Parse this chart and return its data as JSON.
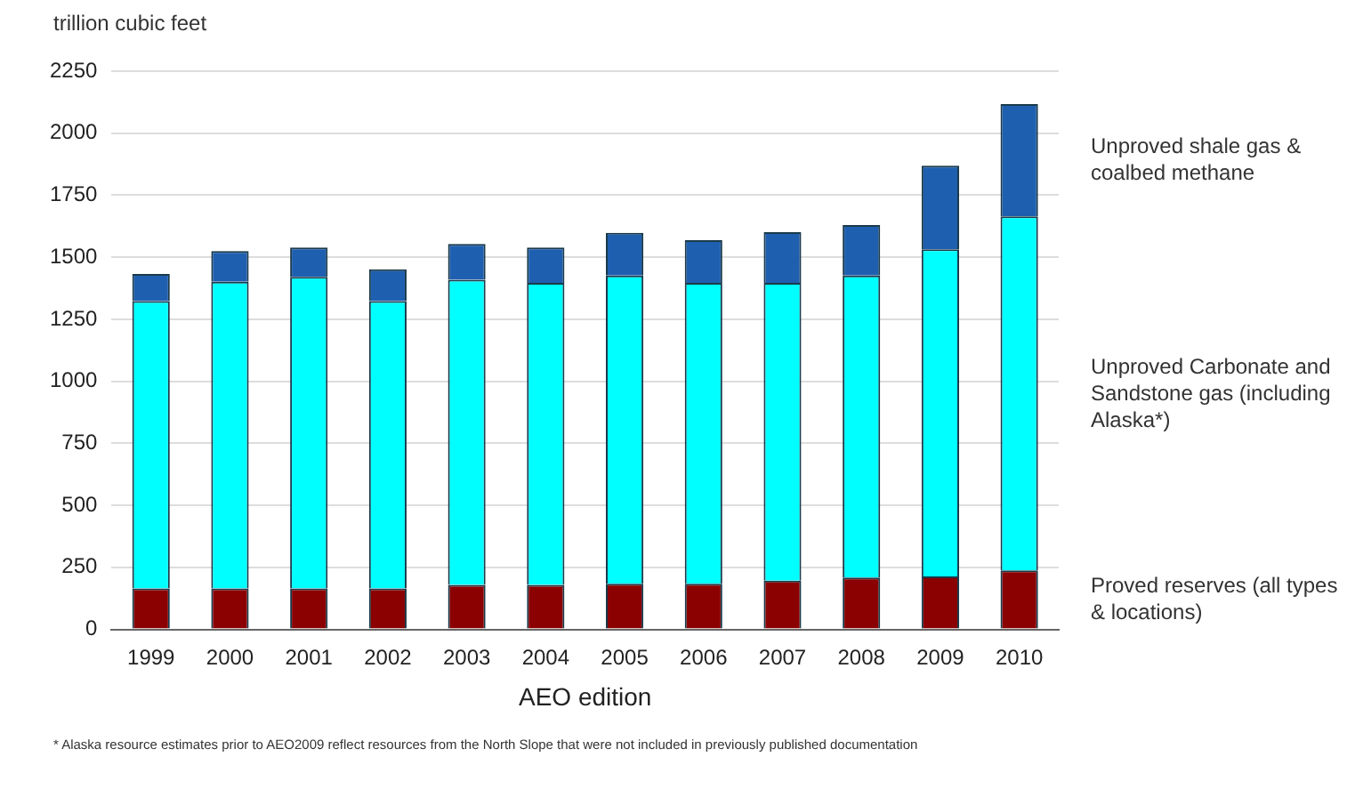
{
  "chart_data": {
    "type": "bar",
    "stacked": true,
    "ylabel": "trillion cubic feet",
    "xlabel": "AEO edition",
    "categories": [
      "1999",
      "2000",
      "2001",
      "2002",
      "2003",
      "2004",
      "2005",
      "2006",
      "2007",
      "2008",
      "2009",
      "2010"
    ],
    "series": [
      {
        "name": "Proved reserves (all types & locations)",
        "color": "#8b0000",
        "values": [
          165,
          165,
          165,
          165,
          180,
          180,
          184,
          184,
          197,
          209,
          214,
          238
        ]
      },
      {
        "name": "Unproved Carbonate and Sandstone gas (including Alaska*)",
        "color": "#00ffff",
        "values": [
          1158,
          1236,
          1256,
          1158,
          1229,
          1217,
          1242,
          1213,
          1200,
          1217,
          1318,
          1427
        ]
      },
      {
        "name": "Unproved shale gas & coalbed methane",
        "color": "#1f5fb0",
        "values": [
          110,
          124,
          118,
          128,
          145,
          142,
          172,
          172,
          204,
          204,
          337,
          452
        ]
      }
    ],
    "ylim": [
      0,
      2250
    ],
    "yticks": [
      0,
      250,
      500,
      750,
      1000,
      1250,
      1500,
      1750,
      2000,
      2250
    ],
    "grid": "y",
    "legend": false,
    "annotations": [
      "* Alaska resource estimates prior to AEO2009 reflect resources from the North Slope that were not included in previously published documentation"
    ]
  }
}
